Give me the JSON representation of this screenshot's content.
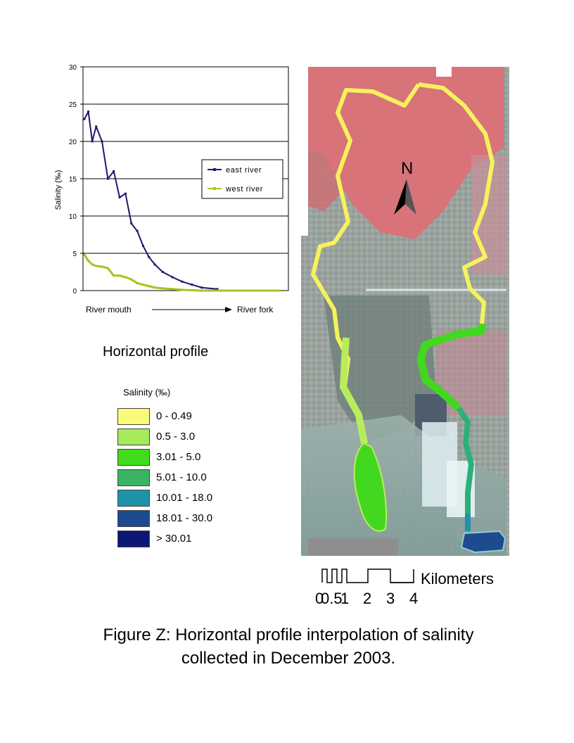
{
  "chart_data": {
    "type": "line",
    "title": "",
    "ylabel": "Salinity (‰)",
    "ylim": [
      0,
      30
    ],
    "yticks": [
      0,
      5,
      10,
      15,
      20,
      25,
      30
    ],
    "grid": true,
    "legend_position": "center-right",
    "x_axis_note": {
      "left": "River mouth",
      "right": "River fork"
    },
    "x": [
      0,
      0.02,
      0.04,
      0.06,
      0.09,
      0.12,
      0.15,
      0.18,
      0.21,
      0.24,
      0.27,
      0.3,
      0.33,
      0.36,
      0.4,
      0.45,
      0.5,
      0.55,
      0.6,
      0.68,
      0.76,
      0.84,
      0.92,
      1.0
    ],
    "series": [
      {
        "name": "east river",
        "color": "#1a1a6e",
        "values": [
          23,
          24,
          20,
          22,
          20,
          15,
          16,
          12.5,
          13,
          9,
          8,
          6,
          4.5,
          3.5,
          2.5,
          1.8,
          1.2,
          0.8,
          0.4,
          0.2,
          null,
          null,
          null,
          null
        ]
      },
      {
        "name": "west river",
        "color": "#a6c41f",
        "values": [
          4.8,
          4,
          3.5,
          3.3,
          3.2,
          3,
          2,
          2,
          1.8,
          1.5,
          1,
          0.8,
          0.6,
          0.4,
          0.3,
          0.2,
          0.1,
          0.05,
          0,
          0,
          0,
          0,
          0,
          0
        ]
      }
    ]
  },
  "labels": {
    "horizontal_profile": "Horizontal profile",
    "legend_title": "Salinity (‰)",
    "north": "N",
    "scale_unit": "Kilometers",
    "scale_ticks": [
      "0",
      "0.5",
      "1",
      "2",
      "3",
      "4"
    ]
  },
  "salinity_classes": [
    {
      "label": "0 - 0.49",
      "color": "#fafa7a"
    },
    {
      "label": "0.5 - 3.0",
      "color": "#a4ea5a"
    },
    {
      "label": "3.01 - 5.0",
      "color": "#40dc1c"
    },
    {
      "label": "5.01 - 10.0",
      "color": "#3ab464"
    },
    {
      "label": "10.01 - 18.0",
      "color": "#1e94a8"
    },
    {
      "label": "18.01 - 30.0",
      "color": "#1e4a8e"
    },
    {
      "label": "> 30.01",
      "color": "#0e1676"
    }
  ],
  "caption": {
    "line1": "Figure Z: Horizontal profile interpolation of salinity",
    "line2": "collected in December 2003."
  }
}
